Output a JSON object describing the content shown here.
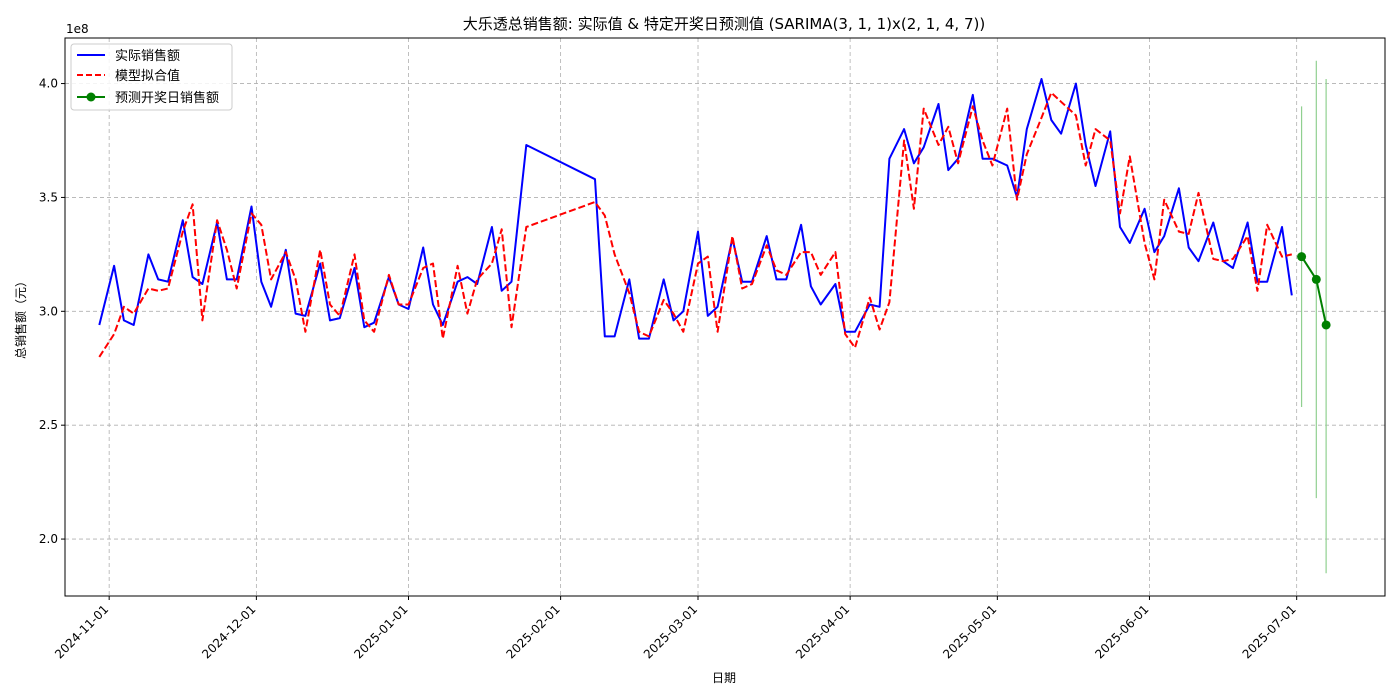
{
  "chart_data": {
    "type": "line",
    "title": "大乐透总销售额: 实际值 & 特定开奖日预测值 (SARIMA(3, 1, 1)x(2, 1, 4, 7))",
    "xlabel": "日期",
    "ylabel": "总销售额（元）",
    "y_multiplier_label": "1e8",
    "ylim": [
      1.75,
      4.2
    ],
    "y_ticks": [
      2.0,
      2.5,
      3.0,
      3.5,
      4.0
    ],
    "y_tick_labels": [
      "2.0",
      "2.5",
      "3.0",
      "3.5",
      "4.0"
    ],
    "x_range": [
      "2024-10-23",
      "2025-07-19"
    ],
    "x_ticks": [
      "2024-11-01",
      "2024-12-01",
      "2025-01-01",
      "2025-02-01",
      "2025-03-01",
      "2025-04-01",
      "2025-05-01",
      "2025-06-01",
      "2025-07-01"
    ],
    "grid": true,
    "legend_position": "top-left",
    "colors": {
      "actual": "#0000ff",
      "fitted": "#ff0000",
      "forecast": "#008000",
      "interval": "#90d090"
    },
    "series": [
      {
        "name": "实际销售额",
        "style": "solid",
        "x": [
          "2024-10-30",
          "2024-11-02",
          "2024-11-04",
          "2024-11-06",
          "2024-11-09",
          "2024-11-11",
          "2024-11-13",
          "2024-11-16",
          "2024-11-18",
          "2024-11-20",
          "2024-11-23",
          "2024-11-25",
          "2024-11-27",
          "2024-11-30",
          "2024-12-02",
          "2024-12-04",
          "2024-12-07",
          "2024-12-09",
          "2024-12-11",
          "2024-12-14",
          "2024-12-16",
          "2024-12-18",
          "2024-12-21",
          "2024-12-23",
          "2024-12-25",
          "2024-12-28",
          "2024-12-30",
          "2025-01-01",
          "2025-01-04",
          "2025-01-06",
          "2025-01-08",
          "2025-01-11",
          "2025-01-13",
          "2025-01-15",
          "2025-01-18",
          "2025-01-20",
          "2025-01-22",
          "2025-01-25",
          "2025-02-08",
          "2025-02-10",
          "2025-02-12",
          "2025-02-15",
          "2025-02-17",
          "2025-02-19",
          "2025-02-22",
          "2025-02-24",
          "2025-02-26",
          "2025-03-01",
          "2025-03-03",
          "2025-03-05",
          "2025-03-08",
          "2025-03-10",
          "2025-03-12",
          "2025-03-15",
          "2025-03-17",
          "2025-03-19",
          "2025-03-22",
          "2025-03-24",
          "2025-03-26",
          "2025-03-29",
          "2025-03-31",
          "2025-04-02",
          "2025-04-05",
          "2025-04-07",
          "2025-04-09",
          "2025-04-12",
          "2025-04-14",
          "2025-04-16",
          "2025-04-19",
          "2025-04-21",
          "2025-04-23",
          "2025-04-26",
          "2025-04-28",
          "2025-04-30",
          "2025-05-03",
          "2025-05-05",
          "2025-05-07",
          "2025-05-10",
          "2025-05-12",
          "2025-05-14",
          "2025-05-17",
          "2025-05-19",
          "2025-05-21",
          "2025-05-24",
          "2025-05-26",
          "2025-05-28",
          "2025-05-31",
          "2025-06-02",
          "2025-06-04",
          "2025-06-07",
          "2025-06-09",
          "2025-06-11",
          "2025-06-14",
          "2025-06-16",
          "2025-06-18",
          "2025-06-21",
          "2025-06-23",
          "2025-06-25",
          "2025-06-28",
          "2025-06-30"
        ],
        "values": [
          2.94,
          3.2,
          2.96,
          2.94,
          3.25,
          3.14,
          3.13,
          3.4,
          3.15,
          3.12,
          3.39,
          3.14,
          3.14,
          3.46,
          3.13,
          3.02,
          3.27,
          2.99,
          2.98,
          3.21,
          2.96,
          2.97,
          3.19,
          2.93,
          2.95,
          3.15,
          3.03,
          3.01,
          3.28,
          3.03,
          2.94,
          3.13,
          3.15,
          3.12,
          3.37,
          3.09,
          3.13,
          3.73,
          3.58,
          2.89,
          2.89,
          3.14,
          2.88,
          2.88,
          3.14,
          2.96,
          3.0,
          3.35,
          2.98,
          3.02,
          3.32,
          3.13,
          3.13,
          3.33,
          3.14,
          3.14,
          3.38,
          3.11,
          3.03,
          3.12,
          2.91,
          2.91,
          3.03,
          3.02,
          3.67,
          3.8,
          3.65,
          3.72,
          3.91,
          3.62,
          3.67,
          3.95,
          3.67,
          3.67,
          3.64,
          3.5,
          3.8,
          4.02,
          3.84,
          3.78,
          4.0,
          3.73,
          3.55,
          3.79,
          3.37,
          3.3,
          3.45,
          3.26,
          3.33,
          3.54,
          3.28,
          3.22,
          3.39,
          3.22,
          3.19,
          3.39,
          3.13,
          3.13,
          3.37,
          3.07
        ]
      },
      {
        "name": "模型拟合值",
        "style": "dashed",
        "x": [
          "2024-10-30",
          "2024-11-02",
          "2024-11-04",
          "2024-11-06",
          "2024-11-09",
          "2024-11-11",
          "2024-11-13",
          "2024-11-16",
          "2024-11-18",
          "2024-11-20",
          "2024-11-23",
          "2024-11-25",
          "2024-11-27",
          "2024-11-30",
          "2024-12-02",
          "2024-12-04",
          "2024-12-07",
          "2024-12-09",
          "2024-12-11",
          "2024-12-14",
          "2024-12-16",
          "2024-12-18",
          "2024-12-21",
          "2024-12-23",
          "2024-12-25",
          "2024-12-28",
          "2024-12-30",
          "2025-01-01",
          "2025-01-04",
          "2025-01-06",
          "2025-01-08",
          "2025-01-11",
          "2025-01-13",
          "2025-01-15",
          "2025-01-18",
          "2025-01-20",
          "2025-01-22",
          "2025-01-25",
          "2025-02-08",
          "2025-02-10",
          "2025-02-12",
          "2025-02-15",
          "2025-02-17",
          "2025-02-19",
          "2025-02-22",
          "2025-02-24",
          "2025-02-26",
          "2025-03-01",
          "2025-03-03",
          "2025-03-05",
          "2025-03-08",
          "2025-03-10",
          "2025-03-12",
          "2025-03-15",
          "2025-03-17",
          "2025-03-19",
          "2025-03-22",
          "2025-03-24",
          "2025-03-26",
          "2025-03-29",
          "2025-03-31",
          "2025-04-02",
          "2025-04-05",
          "2025-04-07",
          "2025-04-09",
          "2025-04-12",
          "2025-04-14",
          "2025-04-16",
          "2025-04-19",
          "2025-04-21",
          "2025-04-23",
          "2025-04-26",
          "2025-04-28",
          "2025-04-30",
          "2025-05-03",
          "2025-05-05",
          "2025-05-07",
          "2025-05-10",
          "2025-05-12",
          "2025-05-14",
          "2025-05-17",
          "2025-05-19",
          "2025-05-21",
          "2025-05-24",
          "2025-05-26",
          "2025-05-28",
          "2025-05-31",
          "2025-06-02",
          "2025-06-04",
          "2025-06-07",
          "2025-06-09",
          "2025-06-11",
          "2025-06-14",
          "2025-06-16",
          "2025-06-18",
          "2025-06-21",
          "2025-06-23",
          "2025-06-25",
          "2025-06-28",
          "2025-06-30"
        ],
        "values": [
          2.8,
          2.9,
          3.02,
          2.99,
          3.1,
          3.09,
          3.1,
          3.35,
          3.47,
          2.96,
          3.4,
          3.27,
          3.1,
          3.43,
          3.38,
          3.14,
          3.26,
          3.14,
          2.91,
          3.27,
          3.03,
          2.98,
          3.25,
          2.96,
          2.91,
          3.16,
          3.03,
          3.03,
          3.19,
          3.21,
          2.88,
          3.2,
          2.99,
          3.14,
          3.21,
          3.36,
          2.93,
          3.37,
          3.48,
          3.42,
          3.25,
          3.08,
          2.91,
          2.89,
          3.05,
          2.99,
          2.91,
          3.21,
          3.24,
          2.91,
          3.33,
          3.1,
          3.12,
          3.29,
          3.18,
          3.16,
          3.26,
          3.26,
          3.16,
          3.26,
          2.9,
          2.84,
          3.06,
          2.92,
          3.04,
          3.75,
          3.45,
          3.89,
          3.73,
          3.81,
          3.65,
          3.9,
          3.75,
          3.64,
          3.89,
          3.49,
          3.69,
          3.85,
          3.96,
          3.92,
          3.86,
          3.64,
          3.8,
          3.75,
          3.43,
          3.68,
          3.3,
          3.14,
          3.49,
          3.35,
          3.34,
          3.52,
          3.23,
          3.22,
          3.23,
          3.33,
          3.09,
          3.38,
          3.24,
          3.25
        ]
      },
      {
        "name": "预测开奖日销售额",
        "style": "solid-marker",
        "x": [
          "2025-07-02",
          "2025-07-05",
          "2025-07-07"
        ],
        "values": [
          3.24,
          3.14,
          2.94
        ],
        "interval_low": [
          2.58,
          2.18,
          1.85
        ],
        "interval_high": [
          3.9,
          4.1,
          4.02
        ]
      }
    ]
  }
}
